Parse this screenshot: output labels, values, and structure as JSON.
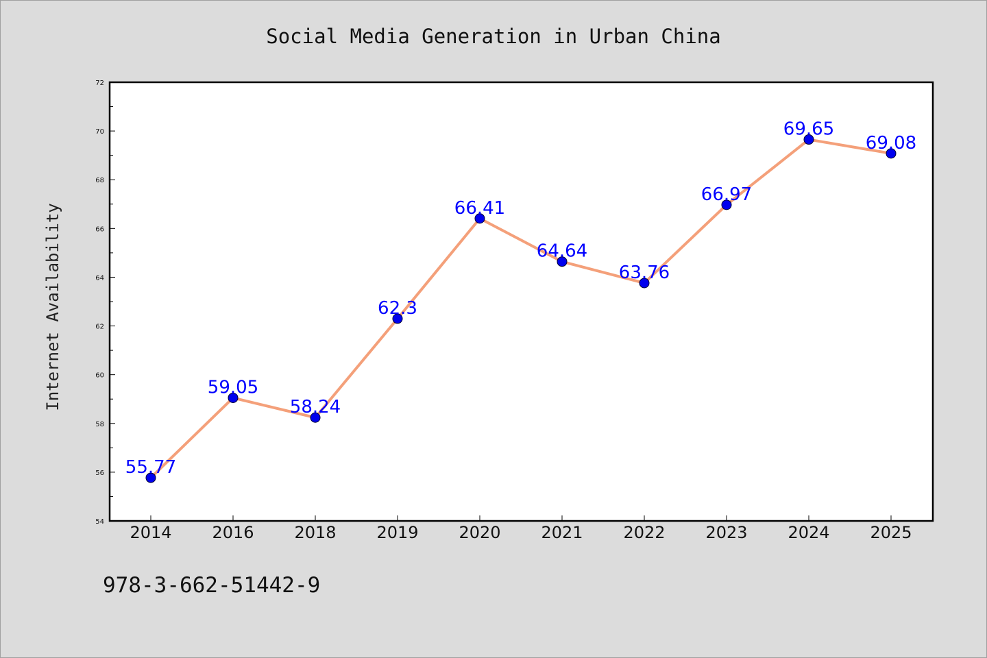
{
  "chart_data": {
    "type": "line",
    "title": "Social Media Generation in Urban China",
    "xlabel": "",
    "ylabel": "Internet Availability",
    "categories": [
      "2014",
      "2016",
      "2018",
      "2019",
      "2020",
      "2021",
      "2022",
      "2023",
      "2024",
      "2025"
    ],
    "series": [
      {
        "values": [
          55.77,
          59.05,
          58.24,
          62.3,
          66.41,
          64.64,
          63.76,
          66.97,
          69.65,
          69.08
        ],
        "data_labels": [
          "55.77",
          "59.05",
          "58.24",
          "62.3",
          "66.41",
          "64.64",
          "63.76",
          "66.97",
          "69.65",
          "69.08"
        ]
      }
    ],
    "ylim": [
      54,
      72
    ],
    "yticks": [
      "54",
      "56",
      "58",
      "60",
      "62",
      "64",
      "66",
      "68",
      "70",
      "72"
    ],
    "grid": false,
    "legend": "none",
    "colors": {
      "line": "#f4a07a",
      "marker": "#0000ee",
      "data_label": "#0000ff",
      "background": "#dcdcdc",
      "plot_area": "#ffffff"
    }
  },
  "footnote": "978-3-662-51442-9"
}
